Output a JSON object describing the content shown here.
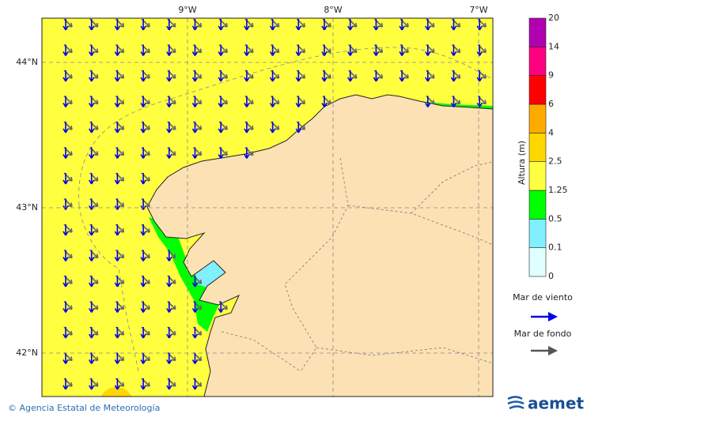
{
  "map": {
    "lon_labels": [
      "9°W",
      "8°W",
      "7°W"
    ],
    "lat_labels": [
      "44°N",
      "43°N",
      "42°N"
    ],
    "colorbar": {
      "title": "Altura (m)",
      "labels": [
        "0",
        "0.1",
        "0.5",
        "1.25",
        "2.5",
        "4",
        "6",
        "9",
        "14",
        "20"
      ],
      "colors": [
        "#e0ffff",
        "#80f0ff",
        "#00ff00",
        "#ffff40",
        "#ffd700",
        "#ffaa00",
        "#ff0000",
        "#ff0080",
        "#b000b0"
      ]
    },
    "legend": {
      "wind_sea": "Mar de viento",
      "swell": "Mar de fondo"
    },
    "footer": {
      "credit": "© Agencia Estatal de Meteorología",
      "logo": "aemet"
    }
  }
}
